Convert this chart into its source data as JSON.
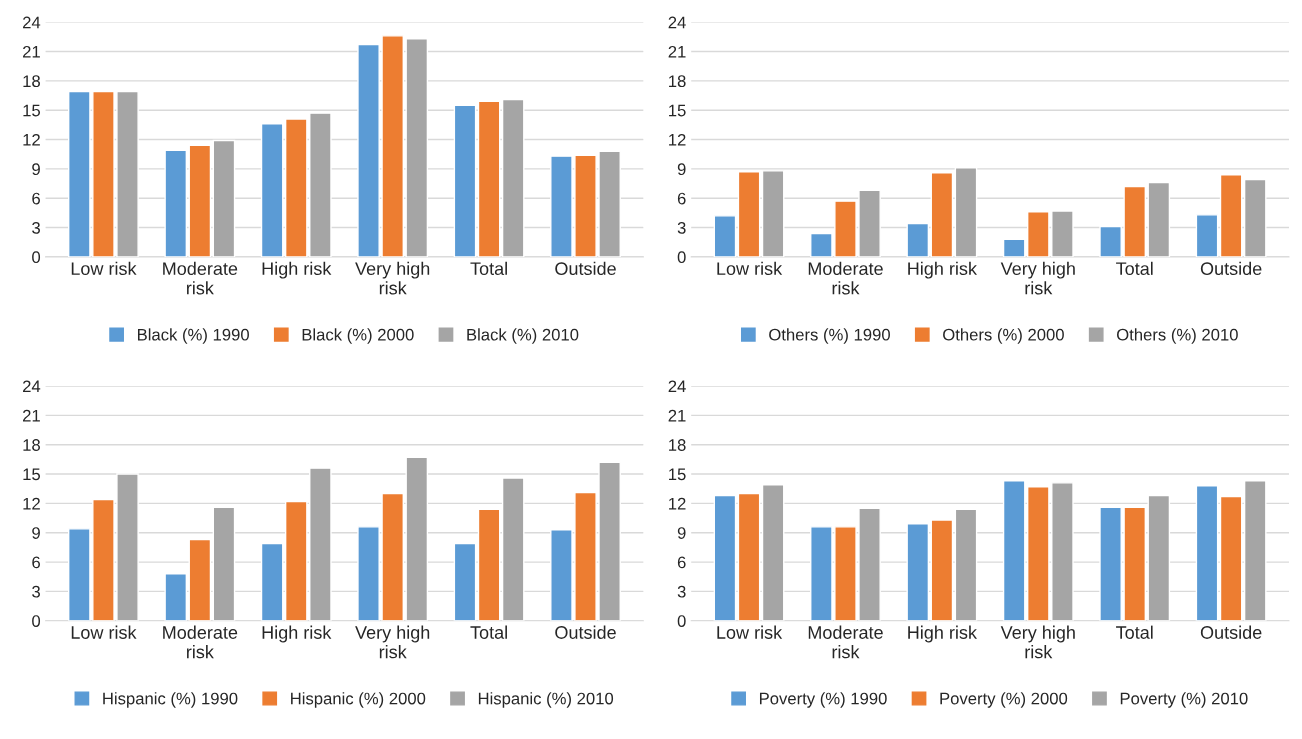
{
  "chart_data": [
    {
      "type": "bar",
      "categories": [
        "Low risk",
        "Moderate\nrisk",
        "High risk",
        "Very high\nrisk",
        "Total",
        "Outside"
      ],
      "ylim": [
        0,
        24
      ],
      "yticks": [
        0,
        3,
        6,
        9,
        12,
        15,
        18,
        21,
        24
      ],
      "grid": "y",
      "legend": "bottom",
      "series": [
        {
          "name": "Black (%) 1990",
          "color": "#5b9bd5",
          "values": [
            16.9,
            10.9,
            13.6,
            21.7,
            15.5,
            10.3
          ]
        },
        {
          "name": "Black (%) 2000",
          "color": "#ed7d31",
          "values": [
            16.9,
            11.4,
            14.1,
            22.6,
            15.9,
            10.4
          ]
        },
        {
          "name": "Black (%) 2010",
          "color": "#a5a5a5",
          "values": [
            16.9,
            11.9,
            14.7,
            22.3,
            16.1,
            10.8
          ]
        }
      ]
    },
    {
      "type": "bar",
      "categories": [
        "Low risk",
        "Moderate\nrisk",
        "High risk",
        "Very high\nrisk",
        "Total",
        "Outside"
      ],
      "ylim": [
        0,
        24
      ],
      "yticks": [
        0,
        3,
        6,
        9,
        12,
        15,
        18,
        21,
        24
      ],
      "grid": "y",
      "legend": "bottom",
      "series": [
        {
          "name": "Others (%) 1990",
          "color": "#5b9bd5",
          "values": [
            4.2,
            2.4,
            3.4,
            1.8,
            3.1,
            4.3
          ]
        },
        {
          "name": "Others (%) 2000",
          "color": "#ed7d31",
          "values": [
            8.7,
            5.7,
            8.6,
            4.6,
            7.2,
            8.4
          ]
        },
        {
          "name": "Others (%) 2010",
          "color": "#a5a5a5",
          "values": [
            8.8,
            6.8,
            9.1,
            4.7,
            7.6,
            7.9
          ]
        }
      ]
    },
    {
      "type": "bar",
      "categories": [
        "Low risk",
        "Moderate\nrisk",
        "High risk",
        "Very high\nrisk",
        "Total",
        "Outside"
      ],
      "ylim": [
        0,
        24
      ],
      "yticks": [
        0,
        3,
        6,
        9,
        12,
        15,
        18,
        21,
        24
      ],
      "grid": "y",
      "legend": "bottom",
      "series": [
        {
          "name": "Hispanic (%) 1990",
          "color": "#5b9bd5",
          "values": [
            9.4,
            4.8,
            7.9,
            9.6,
            7.9,
            9.3
          ]
        },
        {
          "name": "Hispanic (%) 2000",
          "color": "#ed7d31",
          "values": [
            12.4,
            8.3,
            12.2,
            13.0,
            11.4,
            13.1
          ]
        },
        {
          "name": "Hispanic (%) 2010",
          "color": "#a5a5a5",
          "values": [
            15.0,
            11.6,
            15.6,
            16.7,
            14.6,
            16.2
          ]
        }
      ]
    },
    {
      "type": "bar",
      "categories": [
        "Low risk",
        "Moderate\nrisk",
        "High risk",
        "Very high\nrisk",
        "Total",
        "Outside"
      ],
      "ylim": [
        0,
        24
      ],
      "yticks": [
        0,
        3,
        6,
        9,
        12,
        15,
        18,
        21,
        24
      ],
      "grid": "y",
      "legend": "bottom",
      "series": [
        {
          "name": "Poverty (%) 1990",
          "color": "#5b9bd5",
          "values": [
            12.8,
            9.6,
            9.9,
            14.3,
            11.6,
            13.8
          ]
        },
        {
          "name": "Poverty (%) 2000",
          "color": "#ed7d31",
          "values": [
            13.0,
            9.6,
            10.3,
            13.7,
            11.6,
            12.7
          ]
        },
        {
          "name": "Poverty (%) 2010",
          "color": "#a5a5a5",
          "values": [
            13.9,
            11.5,
            11.4,
            14.1,
            12.8,
            14.3
          ]
        }
      ]
    }
  ]
}
